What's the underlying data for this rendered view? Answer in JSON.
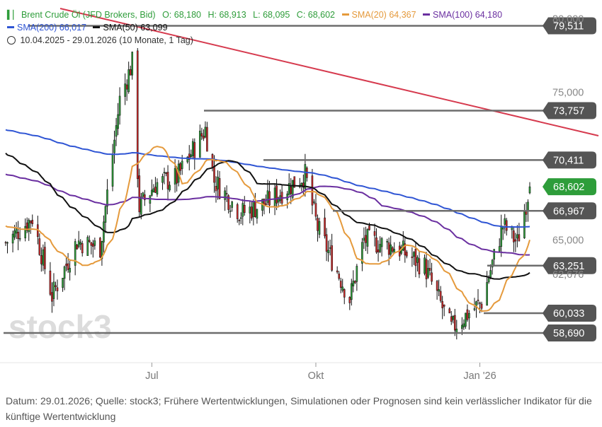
{
  "legend": {
    "instrument": "Brent Crude Öl (JFD Brokers, Bid)",
    "open": "O: 68,180",
    "high": "H: 68,913",
    "low": "L: 68,095",
    "close": "C: 68,602",
    "sma20_label": "SMA(20)",
    "sma20_value": "64,367",
    "sma100_label": "SMA(100)",
    "sma100_value": "64,180",
    "sma200_label": "SMA(200)",
    "sma200_value": "66,017",
    "sma50_label": "SMA(50)",
    "sma50_value": "63,099",
    "range": "10.04.2025 - 29.01.2026",
    "range_detail": "(10 Monate, 1 Tag)"
  },
  "watermark": "stock3",
  "footer": "Datum: 29.01.2026; Quelle: stock3; Frühere Wertentwicklungen, Simulationen oder Prognosen sind kein verlässlicher Indikator für die künftige Wertentwicklung",
  "colors": {
    "up": "#2e9d3a",
    "down": "#c92a2a",
    "sma20": "#e59a3c",
    "sma50": "#111111",
    "sma100": "#6a2fa0",
    "sma200": "#2f55d4",
    "trend": "#d63a4e",
    "level_line": "#6d6d6d",
    "level_box": "#555555",
    "current_box": "#2e9d3a"
  },
  "chart_data": {
    "type": "candlestick",
    "x_tick_labels": [
      "Jul",
      "Okt",
      "Jan '26"
    ],
    "y_tick_labels": [
      "80,000",
      "75,000",
      "65,000",
      "62,676"
    ],
    "ylim": [
      57.3,
      80.3
    ],
    "grid": false,
    "price_levels": [
      "79,511",
      "73,757",
      "70,411",
      "66,967",
      "63,251",
      "60,033",
      "58,690"
    ],
    "current_price": "68,602",
    "ohlc_last": {
      "open": 68.18,
      "high": 68.913,
      "low": 68.095,
      "close": 68.602
    },
    "ohlc_anchors": [
      {
        "date": "2025-04-10",
        "close": 64.8
      },
      {
        "date": "2025-04-25",
        "close": 66.5
      },
      {
        "date": "2025-05-06",
        "close": 61.2
      },
      {
        "date": "2025-05-20",
        "close": 64.9
      },
      {
        "date": "2025-06-02",
        "close": 64.5
      },
      {
        "date": "2025-06-13",
        "close": 74.5
      },
      {
        "date": "2025-06-20",
        "close": 77.0
      },
      {
        "date": "2025-06-24",
        "close": 67.2
      },
      {
        "date": "2025-07-03",
        "close": 68.8
      },
      {
        "date": "2025-07-15",
        "close": 69.2
      },
      {
        "date": "2025-07-31",
        "close": 72.5
      },
      {
        "date": "2025-08-05",
        "close": 69.0
      },
      {
        "date": "2025-08-20",
        "close": 66.8
      },
      {
        "date": "2025-09-03",
        "close": 67.5
      },
      {
        "date": "2025-09-25",
        "close": 69.4
      },
      {
        "date": "2025-10-02",
        "close": 65.8
      },
      {
        "date": "2025-10-20",
        "close": 61.0
      },
      {
        "date": "2025-10-28",
        "close": 65.0
      },
      {
        "date": "2025-11-15",
        "close": 64.5
      },
      {
        "date": "2025-12-01",
        "close": 63.2
      },
      {
        "date": "2025-12-16",
        "close": 59.0
      },
      {
        "date": "2026-01-02",
        "close": 60.8
      },
      {
        "date": "2026-01-14",
        "close": 66.0
      },
      {
        "date": "2026-01-22",
        "close": 64.8
      },
      {
        "date": "2026-01-29",
        "close": 68.602
      }
    ],
    "series": [
      {
        "name": "SMA(20)",
        "values_at_end": 64.367
      },
      {
        "name": "SMA(50)",
        "values_at_end": 63.099
      },
      {
        "name": "SMA(100)",
        "values_at_end": 64.18
      },
      {
        "name": "SMA(200)",
        "values_at_end": 66.017
      }
    ]
  }
}
